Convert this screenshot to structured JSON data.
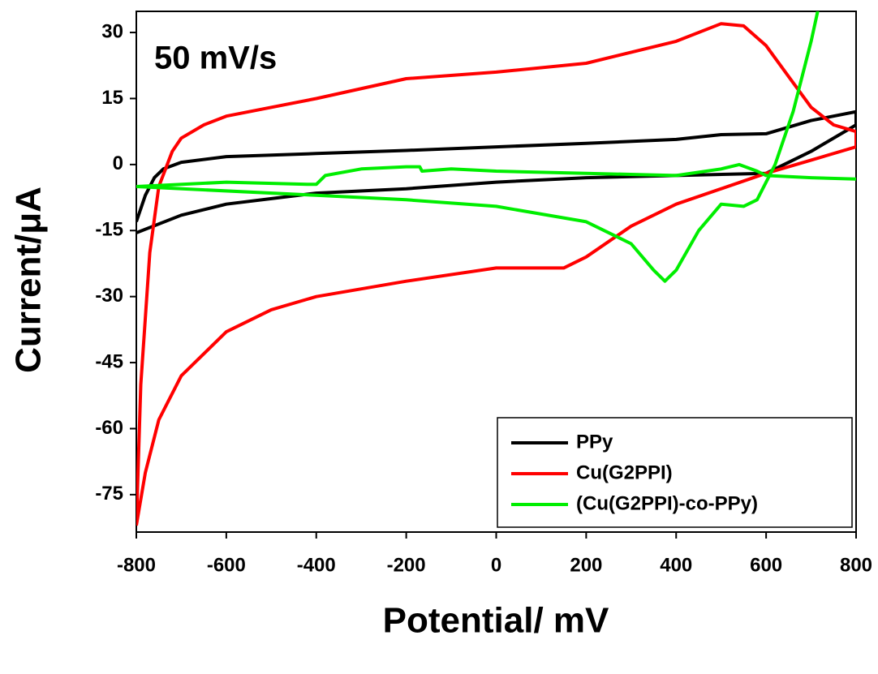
{
  "chart_data": {
    "type": "line",
    "annotation": "50 mV/s",
    "xlabel": "Potential/ mV",
    "ylabel": "Current/μA",
    "xlim": [
      -800,
      800
    ],
    "ylim": [
      -83.5,
      34.8
    ],
    "xticks": [
      -800,
      -600,
      -400,
      -200,
      0,
      200,
      400,
      600,
      800
    ],
    "yticks": [
      30,
      15,
      0,
      -15,
      -30,
      -45,
      -60,
      -75
    ],
    "legend": "lower right",
    "series": [
      {
        "name": "PPy",
        "color": "#000000",
        "x": [
          -800,
          -780,
          -760,
          -740,
          -700,
          -600,
          -400,
          -200,
          0,
          200,
          400,
          500,
          600,
          700,
          800,
          800,
          700,
          600,
          400,
          200,
          0,
          -200,
          -400,
          -600,
          -700,
          -800
        ],
        "values": [
          -13,
          -7,
          -3,
          -1,
          0.5,
          1.8,
          2.5,
          3.2,
          4,
          4.8,
          5.7,
          6.8,
          7,
          10,
          12,
          9,
          3,
          -2,
          -2.5,
          -3,
          -4,
          -5.5,
          -6.5,
          -9,
          -11.5,
          -15.5
        ]
      },
      {
        "name": "Cu(G2PPI)",
        "color": "#ff0000",
        "x": [
          -800,
          -790,
          -770,
          -750,
          -720,
          -700,
          -650,
          -600,
          -400,
          -200,
          0,
          200,
          400,
          500,
          550,
          600,
          650,
          700,
          750,
          800,
          800,
          700,
          600,
          400,
          300,
          200,
          150,
          0,
          -200,
          -400,
          -500,
          -600,
          -700,
          -750,
          -780,
          -800
        ],
        "values": [
          -82,
          -50,
          -20,
          -5,
          3,
          6,
          9,
          11,
          15,
          19.5,
          21,
          23,
          28,
          32,
          31.5,
          27,
          20,
          13,
          9,
          7.5,
          4,
          1,
          -2,
          -9,
          -14,
          -21,
          -23.5,
          -23.5,
          -26.5,
          -30,
          -33,
          -38,
          -48,
          -58,
          -70,
          -82
        ]
      },
      {
        "name": "(Cu(G2PPI)-co-PPy)",
        "color": "#00ee00",
        "x": [
          800,
          700,
          600,
          580,
          540,
          500,
          400,
          200,
          0,
          -100,
          -165,
          -170,
          -200,
          -300,
          -380,
          -400,
          -420,
          -600,
          -800,
          -400,
          -200,
          0,
          200,
          300,
          350,
          375,
          400,
          450,
          500,
          550,
          580,
          620,
          660,
          700,
          715
        ],
        "values": [
          -3.3,
          -3,
          -2.5,
          -1.5,
          0,
          -1,
          -2.5,
          -2,
          -1.5,
          -1,
          -1.5,
          -0.5,
          -0.5,
          -1,
          -2.5,
          -4.5,
          -4.5,
          -4,
          -5,
          -7,
          -8,
          -9.5,
          -13,
          -18,
          -24,
          -26.5,
          -24,
          -15,
          -9,
          -9.5,
          -8,
          0,
          12,
          28,
          35
        ]
      }
    ]
  }
}
